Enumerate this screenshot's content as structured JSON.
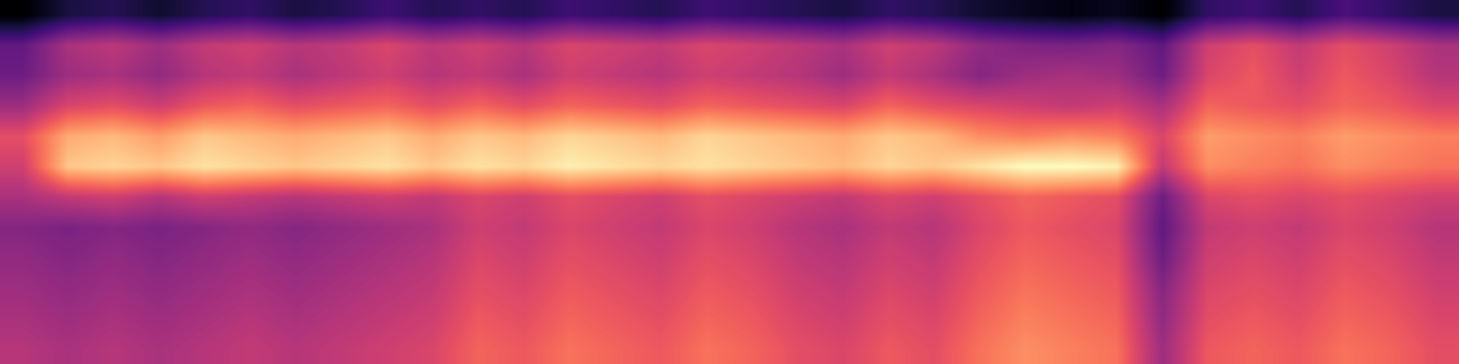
{
  "chart_data": {
    "type": "heatmap",
    "color": "magma",
    "tick_labels": false,
    "cells": [
      [
        20,
        28,
        30,
        26,
        30,
        32,
        28,
        30,
        34,
        30,
        32,
        30,
        34,
        32,
        30,
        34,
        32,
        30,
        28,
        32,
        30,
        26,
        24,
        22,
        24,
        20,
        32,
        34,
        30,
        36,
        32,
        28
      ],
      [
        40,
        52,
        55,
        50,
        56,
        58,
        54,
        56,
        60,
        55,
        58,
        54,
        60,
        58,
        56,
        60,
        58,
        55,
        52,
        58,
        55,
        48,
        45,
        44,
        46,
        40,
        58,
        62,
        56,
        62,
        58,
        52
      ],
      [
        42,
        50,
        52,
        48,
        54,
        56,
        52,
        55,
        58,
        54,
        56,
        52,
        58,
        56,
        54,
        58,
        56,
        54,
        50,
        56,
        52,
        46,
        50,
        52,
        50,
        42,
        60,
        64,
        58,
        64,
        60,
        54
      ],
      [
        50,
        60,
        62,
        58,
        64,
        66,
        62,
        64,
        66,
        62,
        66,
        62,
        66,
        64,
        62,
        66,
        64,
        62,
        60,
        66,
        62,
        60,
        58,
        56,
        58,
        52,
        66,
        64,
        62,
        66,
        64,
        60
      ],
      [
        62,
        76,
        78,
        74,
        80,
        78,
        76,
        78,
        80,
        76,
        80,
        78,
        82,
        80,
        78,
        82,
        80,
        78,
        76,
        80,
        78,
        72,
        70,
        72,
        70,
        60,
        74,
        72,
        70,
        74,
        72,
        70
      ],
      [
        58,
        80,
        82,
        80,
        84,
        82,
        80,
        82,
        84,
        80,
        84,
        82,
        86,
        84,
        82,
        84,
        82,
        80,
        78,
        82,
        80,
        84,
        88,
        88,
        86,
        56,
        72,
        70,
        68,
        72,
        70,
        68
      ],
      [
        52,
        56,
        58,
        54,
        58,
        56,
        54,
        56,
        58,
        56,
        60,
        58,
        62,
        60,
        58,
        62,
        60,
        58,
        56,
        60,
        58,
        62,
        66,
        64,
        62,
        42,
        60,
        62,
        60,
        62,
        60,
        58
      ],
      [
        46,
        44,
        46,
        44,
        46,
        48,
        46,
        48,
        50,
        52,
        58,
        56,
        60,
        58,
        56,
        60,
        58,
        54,
        52,
        56,
        54,
        60,
        64,
        62,
        60,
        40,
        56,
        58,
        56,
        60,
        58,
        54
      ],
      [
        48,
        46,
        48,
        46,
        48,
        50,
        48,
        50,
        52,
        54,
        60,
        58,
        62,
        60,
        58,
        62,
        60,
        56,
        54,
        58,
        56,
        62,
        66,
        64,
        62,
        42,
        58,
        60,
        58,
        62,
        60,
        56
      ],
      [
        50,
        48,
        50,
        48,
        50,
        52,
        50,
        52,
        54,
        56,
        62,
        60,
        64,
        62,
        60,
        64,
        62,
        58,
        56,
        60,
        58,
        64,
        68,
        66,
        64,
        46,
        60,
        62,
        60,
        64,
        62,
        58
      ],
      [
        52,
        50,
        52,
        50,
        52,
        54,
        52,
        54,
        56,
        58,
        64,
        62,
        66,
        64,
        62,
        66,
        64,
        60,
        58,
        62,
        60,
        66,
        70,
        68,
        66,
        48,
        62,
        64,
        62,
        66,
        64,
        60
      ],
      [
        54,
        52,
        54,
        52,
        54,
        56,
        54,
        56,
        58,
        60,
        66,
        64,
        68,
        66,
        64,
        68,
        66,
        62,
        60,
        64,
        62,
        68,
        72,
        70,
        68,
        50,
        64,
        66,
        64,
        68,
        66,
        62
      ]
    ]
  }
}
